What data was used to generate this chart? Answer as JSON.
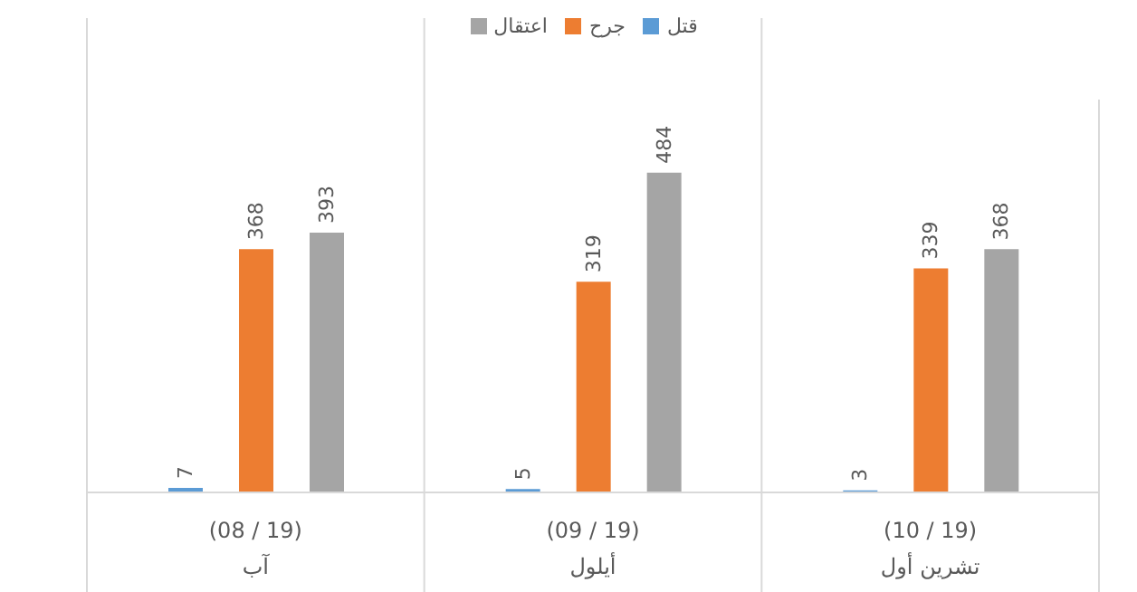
{
  "chart_data": {
    "type": "bar",
    "categories": [
      "(08 / 19)\nآب",
      "(09 / 19)\nأيلول",
      "(10 / 19)\nتشرين أول"
    ],
    "series": [
      {
        "name": "قتل",
        "color": "#5b9bd5",
        "values": [
          7,
          5,
          3
        ]
      },
      {
        "name": "جرح",
        "color": "#ed7d31",
        "values": [
          368,
          319,
          339
        ]
      },
      {
        "name": "اعتقال",
        "color": "#a5a5a5",
        "values": [
          393,
          484,
          368
        ]
      }
    ],
    "data_labels": true,
    "legend": "top",
    "relative": false
  }
}
